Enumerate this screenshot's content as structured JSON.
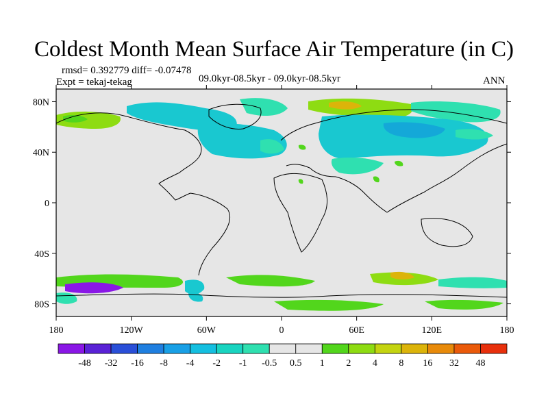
{
  "title": "Coldest Month Mean Surface Air Temperature (in C)",
  "stats_line": "rmsd= 0.392779 diff= -0.07478",
  "experiment_line": "Expt = tekaj-tekag",
  "period_line": "09.0kyr-08.5kyr - 09.0kyr-08.5kyr",
  "season": "ANN",
  "axes": {
    "lat_ticks": [
      {
        "value": 80,
        "label": "80N"
      },
      {
        "value": 40,
        "label": "40N"
      },
      {
        "value": 0,
        "label": "0"
      },
      {
        "value": -40,
        "label": "40S"
      },
      {
        "value": -80,
        "label": "80S"
      }
    ],
    "lon_ticks": [
      {
        "value": -180,
        "label": "180"
      },
      {
        "value": -120,
        "label": "120W"
      },
      {
        "value": -60,
        "label": "60W"
      },
      {
        "value": 0,
        "label": "0"
      },
      {
        "value": 60,
        "label": "60E"
      },
      {
        "value": 120,
        "label": "120E"
      },
      {
        "value": 180,
        "label": "180"
      }
    ],
    "lon_range": [
      -180,
      180
    ],
    "lat_range": [
      -90,
      90
    ]
  },
  "colorbar": {
    "labels": [
      "-48",
      "-32",
      "-16",
      "-8",
      "-4",
      "-2",
      "-1",
      "-0.5",
      "0.5",
      "1",
      "2",
      "4",
      "8",
      "16",
      "32",
      "48"
    ],
    "colors": [
      "#8a17e6",
      "#5a22d6",
      "#2a4fd8",
      "#1f7fe0",
      "#19a0e6",
      "#14bfe0",
      "#19d4c0",
      "#2fe0b0",
      "#e6e6e6",
      "#52d61c",
      "#8edc12",
      "#c4d410",
      "#dcb40a",
      "#e88a0a",
      "#ea5a0a",
      "#e8300c"
    ]
  },
  "colors": {
    "background": "#e6e6e6",
    "cool_1": "#19c8d0",
    "cool_2": "#2fe0b0",
    "warm_1": "#8edc12",
    "warm_2": "#52d61c",
    "accent_orange": "#dcb40a"
  }
}
